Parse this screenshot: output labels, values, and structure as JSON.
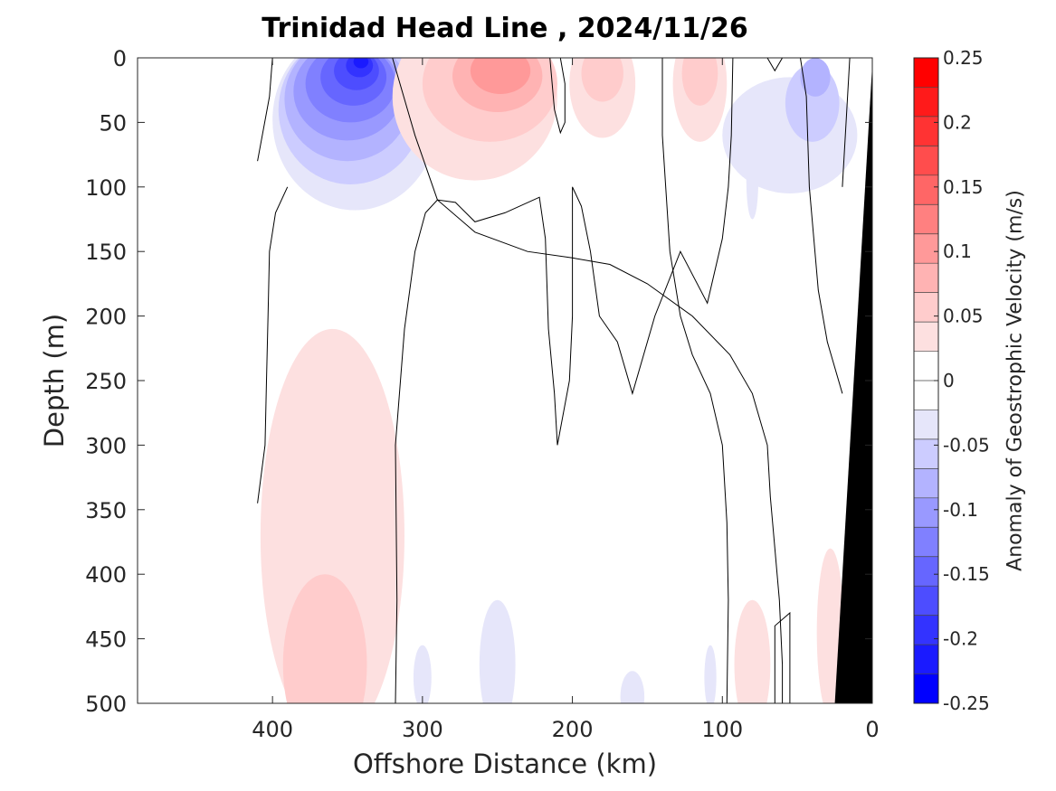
{
  "chart_data": {
    "type": "heatmap",
    "title": "Trinidad Head Line , 2024/11/26",
    "xlabel": "Offshore Distance (km)",
    "ylabel": "Depth (m)",
    "colorbar_label": "Anomaly of Geostrophic Velocity (m/s)",
    "xlim": [
      490,
      0
    ],
    "ylim": [
      0,
      500
    ],
    "x_ticks": [
      "400",
      "300",
      "200",
      "100",
      "0"
    ],
    "x_tick_values": [
      400,
      300,
      200,
      100,
      0
    ],
    "y_ticks": [
      "0",
      "50",
      "100",
      "150",
      "200",
      "250",
      "300",
      "350",
      "400",
      "450",
      "500"
    ],
    "y_tick_values": [
      0,
      50,
      100,
      150,
      200,
      250,
      300,
      350,
      400,
      450,
      500
    ],
    "colorbar_ticks": [
      "0.25",
      "0.2",
      "0.15",
      "0.1",
      "0.05",
      "0",
      "-0.05",
      "-0.1",
      "-0.15",
      "-0.2",
      "-0.25"
    ],
    "colorbar_tick_values": [
      0.25,
      0.2,
      0.15,
      0.1,
      0.05,
      0,
      -0.05,
      -0.1,
      -0.15,
      -0.2,
      -0.25
    ],
    "levels": [
      -0.275,
      -0.25,
      -0.225,
      -0.2,
      -0.175,
      -0.15,
      -0.125,
      -0.1,
      -0.075,
      -0.05,
      -0.025,
      0.025,
      0.05,
      0.075,
      0.1,
      0.125,
      0.15,
      0.175,
      0.2,
      0.225,
      0.25,
      0.275
    ],
    "colormap": {
      "negative": [
        "#0000ff",
        "#1a1aff",
        "#3333ff",
        "#4d4dff",
        "#6666ff",
        "#8080ff",
        "#9999ff",
        "#b3b3ff",
        "#ccccff",
        "#e6e6fa"
      ],
      "zero": "#ffffff",
      "positive": [
        "#fde0e0",
        "#ffcccc",
        "#ffb3b3",
        "#ff9999",
        "#ff8080",
        "#ff6666",
        "#ff4d4d",
        "#ff3333",
        "#ff1a1a",
        "#ff0000"
      ]
    },
    "colors": {
      "axis": "#262626",
      "contour": "#000000",
      "seafloor": "#000000"
    },
    "features": [
      {
        "name": "surface southward jet",
        "sign": "negative",
        "x_km": 345,
        "depth_m": 10,
        "peak": -0.25
      },
      {
        "name": "offshore northward flow",
        "sign": "positive",
        "x_km": 250,
        "depth_m": 20,
        "peak": 0.1
      },
      {
        "name": "deep offshore northward flow",
        "sign": "positive",
        "x_km": 370,
        "depth_m": 460,
        "peak": 0.05
      },
      {
        "name": "nearshore southward flow",
        "sign": "negative",
        "x_km": 40,
        "depth_m": 40,
        "peak": -0.1
      }
    ]
  }
}
